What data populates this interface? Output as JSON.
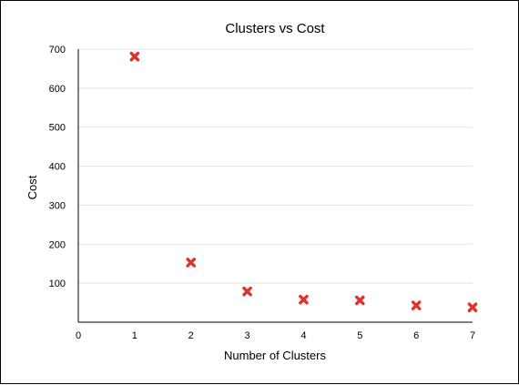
{
  "chart_data": {
    "type": "scatter",
    "title": "Clusters vs Cost",
    "xlabel": "Number of Clusters",
    "ylabel": "Cost",
    "x": [
      1,
      2,
      3,
      4,
      5,
      6,
      7
    ],
    "y": [
      681,
      153,
      79,
      58,
      56,
      43,
      38
    ],
    "xlim": [
      0,
      7
    ],
    "ylim": [
      0,
      700
    ],
    "xticks": [
      "0",
      "1",
      "2",
      "3",
      "4",
      "5",
      "6",
      "7"
    ],
    "yticks": [
      "100",
      "200",
      "300",
      "400",
      "500",
      "600",
      "700"
    ],
    "marker": "x",
    "marker_color": "#e0312b",
    "grid": true,
    "legend": "none"
  }
}
